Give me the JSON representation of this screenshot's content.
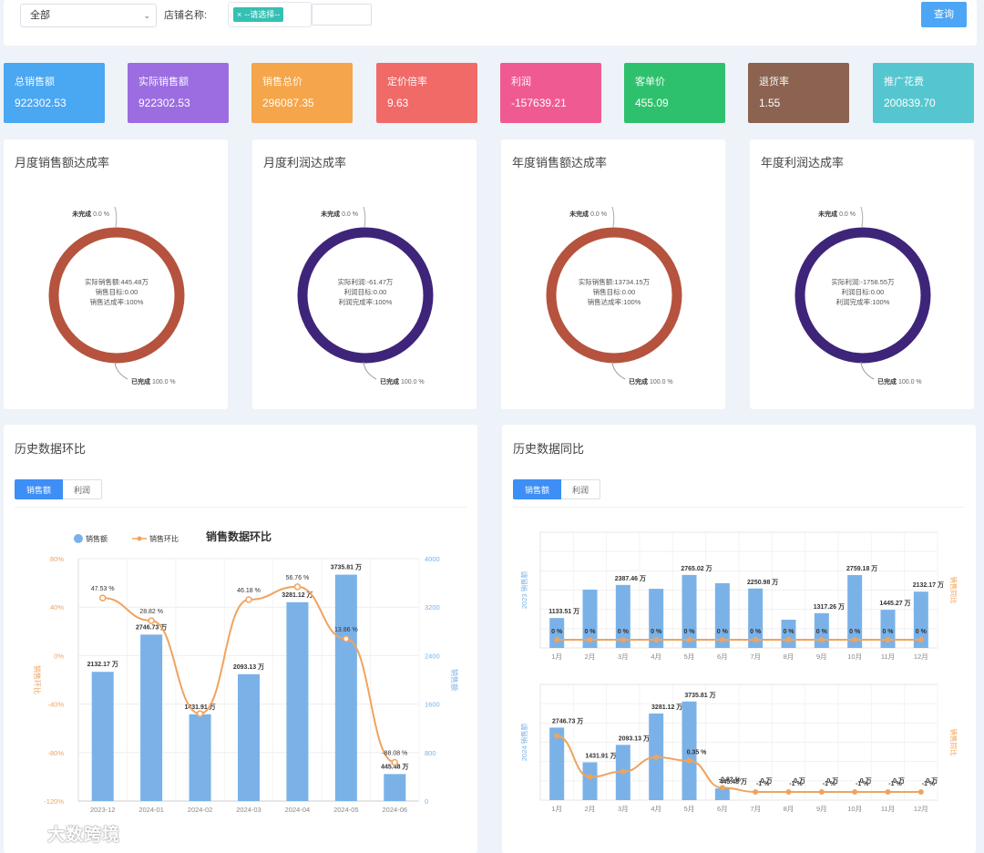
{
  "filter": {
    "region_value": "全部",
    "shop_label": "店铺名称:",
    "shop_tag_text": "--请选择--",
    "query_label": "查询"
  },
  "kpis": [
    {
      "label": "总销售额",
      "value": "922302.53",
      "color": "#4aa7f2"
    },
    {
      "label": "实际销售额",
      "value": "922302.53",
      "color": "#9b6de0"
    },
    {
      "label": "销售总价",
      "value": "296087.35",
      "color": "#f5a54a"
    },
    {
      "label": "定价倍率",
      "value": "9.63",
      "color": "#f06a68"
    },
    {
      "label": "利润",
      "value": "-157639.21",
      "color": "#f05a93"
    },
    {
      "label": "客单价",
      "value": "455.09",
      "color": "#2ec16d"
    },
    {
      "label": "退货率",
      "value": "1.55",
      "color": "#8c6350"
    },
    {
      "label": "推广花费",
      "value": "200839.70",
      "color": "#55c6cf"
    }
  ],
  "donuts": [
    {
      "title": "月度销售额达成率",
      "color": "#b5533e",
      "incomplete_label": "未完成",
      "incomplete_value": "0.0 %",
      "complete_label": "已完成",
      "complete_value": "100.0 %",
      "center_lines": [
        "实际销售额:445.48万",
        "销售目标:0.00",
        "销售达成率:100%"
      ]
    },
    {
      "title": "月度利润达成率",
      "color": "#3e2579",
      "incomplete_label": "未完成",
      "incomplete_value": "0.0 %",
      "complete_label": "已完成",
      "complete_value": "100.0 %",
      "center_lines": [
        "实际利润:-61.47万",
        "利润目标:0.00",
        "利润完成率:100%"
      ]
    },
    {
      "title": "年度销售额达成率",
      "color": "#b5533e",
      "incomplete_label": "未完成",
      "incomplete_value": "0.0 %",
      "complete_label": "已完成",
      "complete_value": "100.0 %",
      "center_lines": [
        "实际销售额:13734.15万",
        "销售目标:0.00",
        "销售达成率:100%"
      ]
    },
    {
      "title": "年度利润达成率",
      "color": "#3e2579",
      "incomplete_label": "未完成",
      "incomplete_value": "0.0 %",
      "complete_label": "已完成",
      "complete_value": "100.0 %",
      "center_lines": [
        "实际利润:-1758.55万",
        "利润目标:0.00",
        "利润完成率:100%"
      ]
    }
  ],
  "hist_mom": {
    "title": "历史数据环比",
    "tab_sales": "销售额",
    "tab_profit": "利润"
  },
  "hist_yoy": {
    "title": "历史数据同比",
    "tab_sales": "销售额",
    "tab_profit": "利润"
  },
  "watermark": "大数跨境",
  "chart_data": [
    {
      "type": "bar",
      "title": "销售数据环比",
      "legend": [
        "销售额",
        "销售环比"
      ],
      "legend_placement": "top",
      "categories": [
        "2023-12",
        "2024-01",
        "2024-02",
        "2024-03",
        "2024-04",
        "2024-05",
        "2024-06"
      ],
      "series": [
        {
          "name": "销售额",
          "type": "bar",
          "axis": "right",
          "color": "#7ab2e8",
          "values": [
            2132.17,
            2746.73,
            1431.91,
            2093.13,
            3281.12,
            3735.81,
            445.48
          ],
          "labels": [
            "2132.17 万",
            "2746.73 万",
            "1431.91 万",
            "2093.13 万",
            "3281.12 万",
            "3735.81 万",
            "445.48 万"
          ]
        },
        {
          "name": "销售环比",
          "type": "line",
          "axis": "left",
          "color": "#f0a35e",
          "values": [
            47.53,
            28.82,
            -47.87,
            46.18,
            56.76,
            13.86,
            -88.08
          ],
          "labels": [
            "47.53 %",
            "28.82 %",
            "",
            "46.18 %",
            "56.76 %",
            "13.86 %",
            "-88.08 %"
          ]
        }
      ],
      "y_left": {
        "label": "销售环比",
        "ticks": [
          "80%",
          "40%",
          "0%",
          "-40%",
          "-80%",
          "-120%"
        ],
        "range": [
          -120,
          80
        ],
        "color": "#f0a35e"
      },
      "y_right": {
        "label": "销售额",
        "ticks": [
          "4000",
          "3200",
          "2400",
          "1600",
          "800",
          "0"
        ],
        "range": [
          0,
          4000
        ],
        "color": "#7ab2e8"
      }
    },
    {
      "type": "bar",
      "categories": [
        "1月",
        "2月",
        "3月",
        "4月",
        "5月",
        "6月",
        "7月",
        "8月",
        "9月",
        "10月",
        "11月",
        "12月"
      ],
      "series": [
        {
          "name": "2023 销售额",
          "type": "bar",
          "color": "#7ab2e8",
          "values": [
            1133.51,
            2210,
            2387.46,
            2240,
            2765.02,
            2450,
            2250.98,
            1070,
            1317.26,
            2759.18,
            1445.27,
            2132.17
          ],
          "labels": [
            "1133.51 万",
            "",
            "2387.46 万",
            "",
            "2765.02 万",
            "",
            "2250.98 万",
            "",
            "1317.26 万",
            "2759.18 万",
            "1445.27 万",
            "2132.17 万"
          ]
        },
        {
          "name": "同比",
          "type": "line",
          "color": "#f0a35e",
          "values": [
            0,
            0,
            0,
            0,
            0,
            0,
            0,
            0,
            0,
            0,
            0,
            0
          ],
          "labels": [
            "0 %",
            "0 %",
            "0 %",
            "0 %",
            "0 %",
            "0 %",
            "0 %",
            "0 %",
            "0 %",
            "0 %",
            "0 %",
            "0 %"
          ]
        }
      ],
      "y_left": {
        "label": "2023 销售额"
      },
      "y_right": {
        "label": "销售同比"
      },
      "grid": true
    },
    {
      "type": "bar",
      "categories": [
        "1月",
        "2月",
        "3月",
        "4月",
        "5月",
        "6月",
        "7月",
        "8月",
        "9月",
        "10月",
        "11月",
        "12月"
      ],
      "series": [
        {
          "name": "2024 销售额",
          "type": "bar",
          "color": "#7ab2e8",
          "values": [
            2746.73,
            1431.91,
            2093.13,
            3281.12,
            3735.81,
            445.48,
            0,
            0,
            0,
            0,
            0,
            0
          ],
          "labels": [
            "2746.73 万",
            "1431.91 万",
            "2093.13 万",
            "3281.12 万",
            "3735.81 万",
            "445.48 万",
            "0 万",
            "0 万",
            "0 万",
            "0 万",
            "0 万",
            "0 万"
          ]
        },
        {
          "name": "同比",
          "type": "line",
          "color": "#f0a35e",
          "values": [
            1.42,
            -0.35,
            -0.12,
            0.5,
            0.35,
            -0.82,
            -1,
            -1,
            -1,
            -1,
            -1,
            -1
          ],
          "labels": [
            "",
            "",
            "",
            "",
            "0.35 %",
            "-0.82 %",
            "-1 %",
            "-1 %",
            "-1 %",
            "-1 %",
            "-1 %",
            "-1 %"
          ]
        }
      ],
      "y_left": {
        "label": "2024 销售额"
      },
      "y_right": {
        "label": "销售同比"
      },
      "grid": true
    }
  ]
}
